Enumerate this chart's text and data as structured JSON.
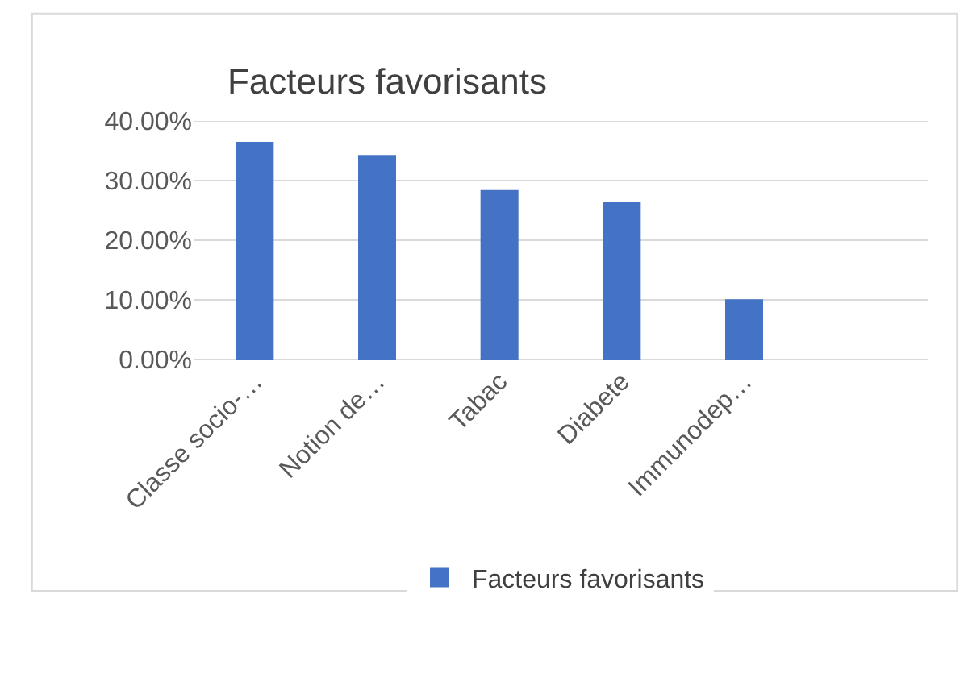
{
  "chart_data": {
    "type": "bar",
    "title": "Facteurs favorisants",
    "categories": [
      "Classe socio-…",
      "Notion de…",
      "Tabac",
      "Diabete",
      "Immunodep…",
      null
    ],
    "series": [
      {
        "name": "Facteurs favorisants",
        "color": "#4472c4",
        "values": [
          36.5,
          34.3,
          28.4,
          26.4,
          10.1,
          null
        ]
      }
    ],
    "ylim": [
      0,
      40
    ],
    "yticks": [
      {
        "value": 0,
        "label": "0.00%"
      },
      {
        "value": 10,
        "label": "10.00%"
      },
      {
        "value": 20,
        "label": "20.00%"
      },
      {
        "value": 30,
        "label": "30.00%"
      },
      {
        "value": 40,
        "label": "40.00%"
      }
    ],
    "grid": "y",
    "legend": "bottom"
  }
}
